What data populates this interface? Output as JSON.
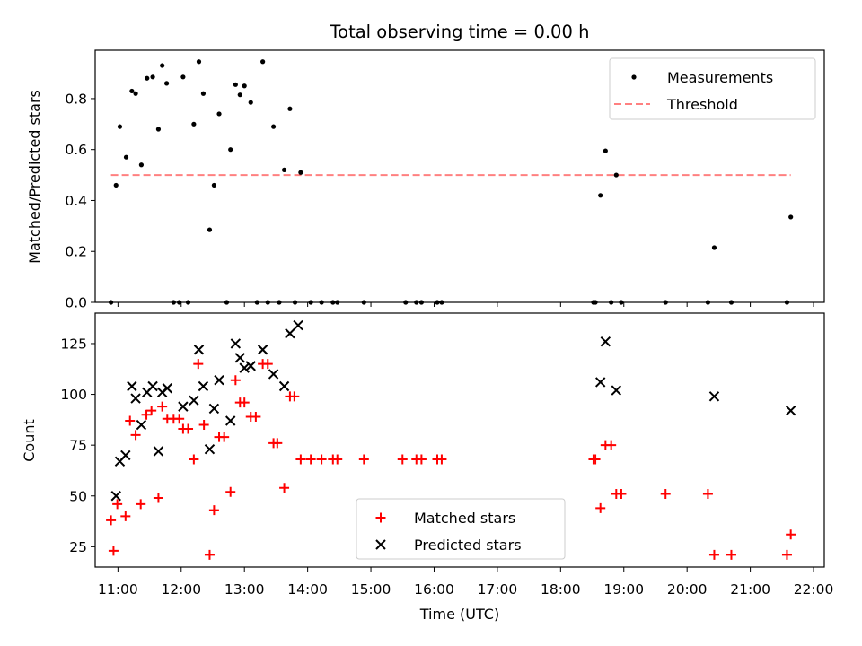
{
  "figure": {
    "title": "Total observing time = 0.00 h"
  },
  "chart_data": [
    {
      "type": "scatter",
      "name": "ratio-panel",
      "ylabel": "Matched/Predicted stars",
      "xlabel": "",
      "xlim": [
        10.64,
        22.17
      ],
      "ylim": [
        0,
        0.99
      ],
      "yticks": [
        0,
        0.2,
        0.4,
        0.6,
        0.8
      ],
      "ytick_labels": [
        "0.0",
        "0.2",
        "0.4",
        "0.6",
        "0.8"
      ],
      "legend": {
        "placement": "upper-right",
        "entries": [
          "Measurements",
          "Threshold"
        ]
      },
      "threshold": {
        "name": "Threshold",
        "y": 0.5,
        "x_range": [
          10.89,
          21.64
        ],
        "color": "#ff8080",
        "style": "dashed"
      },
      "series": [
        {
          "name": "Measurements",
          "marker": "dot",
          "color": "#000000",
          "points": [
            [
              10.89,
              0.0
            ],
            [
              10.97,
              0.46
            ],
            [
              11.03,
              0.69
            ],
            [
              11.13,
              0.57
            ],
            [
              11.22,
              0.83
            ],
            [
              11.28,
              0.82
            ],
            [
              11.37,
              0.54
            ],
            [
              11.46,
              0.88
            ],
            [
              11.55,
              0.885
            ],
            [
              11.64,
              0.68
            ],
            [
              11.7,
              0.93
            ],
            [
              11.77,
              0.86
            ],
            [
              11.88,
              0.0
            ],
            [
              11.97,
              0.0
            ],
            [
              12.03,
              0.885
            ],
            [
              12.11,
              0.0
            ],
            [
              12.2,
              0.7
            ],
            [
              12.28,
              0.945
            ],
            [
              12.35,
              0.82
            ],
            [
              12.45,
              0.285
            ],
            [
              12.52,
              0.46
            ],
            [
              12.6,
              0.74
            ],
            [
              12.72,
              0.0
            ],
            [
              12.78,
              0.6
            ],
            [
              12.86,
              0.855
            ],
            [
              12.93,
              0.815
            ],
            [
              13.0,
              0.85
            ],
            [
              13.1,
              0.785
            ],
            [
              13.2,
              0.0
            ],
            [
              13.29,
              0.945
            ],
            [
              13.37,
              0.0
            ],
            [
              13.46,
              0.69
            ],
            [
              13.55,
              0.0
            ],
            [
              13.63,
              0.52
            ],
            [
              13.72,
              0.76
            ],
            [
              13.8,
              0.0
            ],
            [
              13.89,
              0.51
            ],
            [
              14.05,
              0.0
            ],
            [
              14.22,
              0.0
            ],
            [
              14.4,
              0.0
            ],
            [
              14.47,
              0.0
            ],
            [
              14.89,
              0.0
            ],
            [
              15.55,
              0.0
            ],
            [
              15.72,
              0.0
            ],
            [
              15.8,
              0.0
            ],
            [
              16.05,
              0.0
            ],
            [
              16.12,
              0.0
            ],
            [
              18.52,
              0.0
            ],
            [
              18.55,
              0.0
            ],
            [
              18.63,
              0.42
            ],
            [
              18.71,
              0.595
            ],
            [
              18.8,
              0.0
            ],
            [
              18.88,
              0.5
            ],
            [
              18.96,
              0.0
            ],
            [
              19.66,
              0.0
            ],
            [
              20.33,
              0.0
            ],
            [
              20.43,
              0.215
            ],
            [
              20.7,
              0.0
            ],
            [
              21.58,
              0.0
            ],
            [
              21.64,
              0.335
            ]
          ]
        }
      ]
    },
    {
      "type": "scatter",
      "name": "count-panel",
      "ylabel": "Count",
      "xlabel": "Time (UTC)",
      "xlim": [
        10.64,
        22.17
      ],
      "ylim": [
        15,
        140
      ],
      "yticks": [
        25,
        50,
        75,
        100,
        125
      ],
      "ytick_labels": [
        "25",
        "50",
        "75",
        "100",
        "125"
      ],
      "xticks": [
        11,
        12,
        13,
        14,
        15,
        16,
        17,
        18,
        19,
        20,
        21,
        22
      ],
      "xtick_labels": [
        "11:00",
        "12:00",
        "13:00",
        "14:00",
        "15:00",
        "16:00",
        "17:00",
        "18:00",
        "19:00",
        "20:00",
        "21:00",
        "22:00"
      ],
      "legend": {
        "placement": "lower-center",
        "entries": [
          "Matched stars",
          "Predicted stars"
        ]
      },
      "series": [
        {
          "name": "Matched stars",
          "marker": "plus",
          "color": "#ff0000",
          "points": [
            [
              10.89,
              38
            ],
            [
              10.93,
              23
            ],
            [
              10.99,
              46
            ],
            [
              11.12,
              40
            ],
            [
              11.19,
              87
            ],
            [
              11.28,
              80
            ],
            [
              11.36,
              46
            ],
            [
              11.45,
              90
            ],
            [
              11.53,
              92
            ],
            [
              11.64,
              49
            ],
            [
              11.7,
              94
            ],
            [
              11.78,
              88
            ],
            [
              11.88,
              88
            ],
            [
              11.97,
              88
            ],
            [
              12.03,
              83
            ],
            [
              12.11,
              83
            ],
            [
              12.2,
              68
            ],
            [
              12.27,
              115
            ],
            [
              12.36,
              85
            ],
            [
              12.45,
              21
            ],
            [
              12.52,
              43
            ],
            [
              12.6,
              79
            ],
            [
              12.68,
              79
            ],
            [
              12.78,
              52
            ],
            [
              12.86,
              107
            ],
            [
              12.93,
              96
            ],
            [
              13.0,
              96
            ],
            [
              13.1,
              89
            ],
            [
              13.18,
              89
            ],
            [
              13.29,
              115
            ],
            [
              13.37,
              115
            ],
            [
              13.46,
              76
            ],
            [
              13.52,
              76
            ],
            [
              13.63,
              54
            ],
            [
              13.72,
              99
            ],
            [
              13.79,
              99
            ],
            [
              13.89,
              68
            ],
            [
              14.05,
              68
            ],
            [
              14.22,
              68
            ],
            [
              14.4,
              68
            ],
            [
              14.47,
              68
            ],
            [
              14.89,
              68
            ],
            [
              15.5,
              68
            ],
            [
              15.72,
              68
            ],
            [
              15.8,
              68
            ],
            [
              16.05,
              68
            ],
            [
              16.12,
              68
            ],
            [
              18.52,
              68
            ],
            [
              18.55,
              68
            ],
            [
              18.63,
              44
            ],
            [
              18.71,
              75
            ],
            [
              18.8,
              75
            ],
            [
              18.88,
              51
            ],
            [
              18.96,
              51
            ],
            [
              19.66,
              51
            ],
            [
              20.33,
              51
            ],
            [
              20.43,
              21
            ],
            [
              20.7,
              21
            ],
            [
              21.58,
              21
            ],
            [
              21.64,
              31
            ]
          ]
        },
        {
          "name": "Predicted stars",
          "marker": "x",
          "color": "#000000",
          "points": [
            [
              10.97,
              50
            ],
            [
              11.03,
              67
            ],
            [
              11.12,
              70
            ],
            [
              11.22,
              104
            ],
            [
              11.28,
              98
            ],
            [
              11.37,
              85
            ],
            [
              11.46,
              101
            ],
            [
              11.55,
              104
            ],
            [
              11.64,
              72
            ],
            [
              11.7,
              101
            ],
            [
              11.78,
              103
            ],
            [
              12.03,
              94
            ],
            [
              12.2,
              97
            ],
            [
              12.28,
              122
            ],
            [
              12.35,
              104
            ],
            [
              12.45,
              73
            ],
            [
              12.52,
              93
            ],
            [
              12.6,
              107
            ],
            [
              12.78,
              87
            ],
            [
              12.86,
              125
            ],
            [
              12.93,
              118
            ],
            [
              13.0,
              113
            ],
            [
              13.1,
              114
            ],
            [
              13.29,
              122
            ],
            [
              13.46,
              110
            ],
            [
              13.63,
              104
            ],
            [
              13.72,
              130
            ],
            [
              13.85,
              134
            ],
            [
              18.63,
              106
            ],
            [
              18.71,
              126
            ],
            [
              18.88,
              102
            ],
            [
              20.43,
              99
            ],
            [
              21.64,
              92
            ]
          ]
        }
      ]
    }
  ]
}
